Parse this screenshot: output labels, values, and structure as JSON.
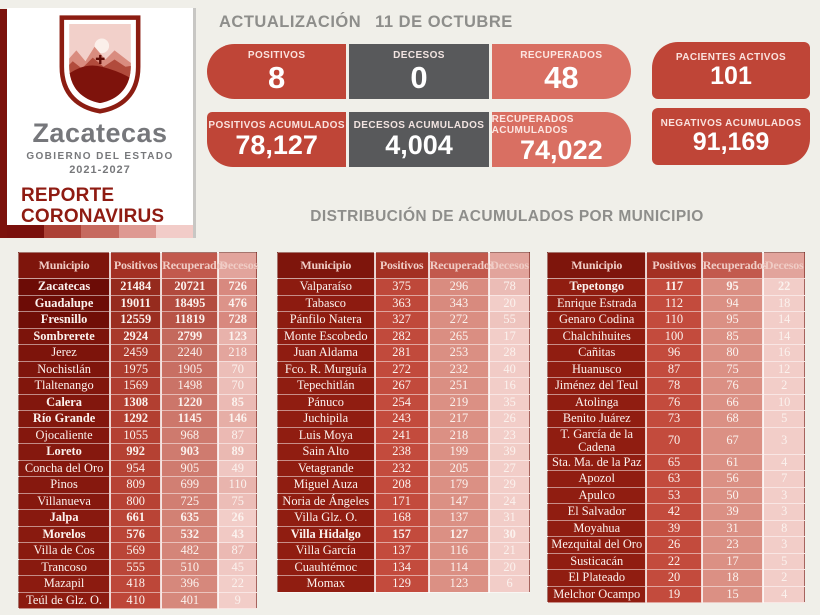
{
  "page": {
    "background": "#F0EFE9",
    "brand_red": "#8F1B12"
  },
  "sidebar": {
    "left_bar_color": "#7C120C",
    "logo": {
      "title": "Zacatecas",
      "subtitle": "GOBIERNO DEL ESTADO",
      "years": "2021-2027"
    },
    "report_title_line1": "REPORTE",
    "report_title_line2": "CORONAVIRUS",
    "accent_strip_colors": [
      "#7A100C",
      "#AC4136",
      "#C66A5F",
      "#DE9992",
      "#F2CCC8"
    ]
  },
  "header": {
    "update_label": "ACTUALIZACIÓN",
    "update_date": "11 DE OCTUBRE"
  },
  "stats": {
    "daily": [
      {
        "label": "POSITIVOS",
        "value": "8",
        "bg": "#BF4537"
      },
      {
        "label": "DECESOS",
        "value": "0",
        "bg": "#58595B"
      },
      {
        "label": "RECUPERADOS",
        "value": "48",
        "bg": "#D96F62"
      }
    ],
    "accumulated": [
      {
        "label": "POSITIVOS ACUMULADOS",
        "value": "78,127",
        "bg": "#BF4537"
      },
      {
        "label": "DECESOS ACUMULADOS",
        "value": "4,004",
        "bg": "#58595B"
      },
      {
        "label": "RECUPERADOS ACUMULADOS",
        "value": "74,022",
        "bg": "#D96F62"
      }
    ],
    "side": [
      {
        "label": "PACIENTES ACTIVOS",
        "value": "101",
        "bg": "#BF4537"
      },
      {
        "label": "NEGATIVOS ACUMULADOS",
        "value": "91,169",
        "bg": "#BF4537"
      }
    ]
  },
  "distribution": {
    "title": "DISTRIBUCIÓN DE ACUMULADOS POR MUNICIPIO",
    "columns": [
      "Municipio",
      "Positivos",
      "Recuperados",
      "Decesos"
    ],
    "header_colors": [
      "#7E150C",
      "#A33023",
      "#C2594D",
      "#E2A49C"
    ],
    "heat": {
      "municipio": {
        "base": "#901D11",
        "dark": "#6C0C06",
        "max": 21484
      },
      "positivos": {
        "base": "#C34B3D",
        "dark": "#952A1D",
        "max": 21484
      },
      "recuperados": {
        "base": "#DB9084",
        "dark": "#B24A3D",
        "max": 20721
      },
      "decesos": {
        "base": "#F2CDC8",
        "dark": "#D8897F",
        "max": 728
      }
    },
    "tables": [
      {
        "rows": [
          [
            "Zacatecas",
            21484,
            20721,
            726,
            1
          ],
          [
            "Guadalupe",
            19011,
            18495,
            476,
            1
          ],
          [
            "Fresnillo",
            12559,
            11819,
            728,
            1
          ],
          [
            "Sombrerete",
            2924,
            2799,
            123,
            1
          ],
          [
            "Jerez",
            2459,
            2240,
            218,
            0
          ],
          [
            "Nochistlán",
            1975,
            1905,
            70,
            0
          ],
          [
            "Tlaltenango",
            1569,
            1498,
            70,
            0
          ],
          [
            "Calera",
            1308,
            1220,
            85,
            1
          ],
          [
            "Río Grande",
            1292,
            1145,
            146,
            1
          ],
          [
            "Ojocaliente",
            1055,
            968,
            87,
            0
          ],
          [
            "Loreto",
            992,
            903,
            89,
            1
          ],
          [
            "Concha del Oro",
            954,
            905,
            49,
            0
          ],
          [
            "Pinos",
            809,
            699,
            110,
            0
          ],
          [
            "Villanueva",
            800,
            725,
            75,
            0
          ],
          [
            "Jalpa",
            661,
            635,
            26,
            1
          ],
          [
            "Morelos",
            576,
            532,
            43,
            1
          ],
          [
            "Villa de Cos",
            569,
            482,
            87,
            0
          ],
          [
            "Trancoso",
            555,
            510,
            45,
            0
          ],
          [
            "Mazapil",
            418,
            396,
            22,
            0
          ],
          [
            "Teúl de Glz. O.",
            410,
            401,
            9,
            0
          ]
        ]
      },
      {
        "rows": [
          [
            "Valparaíso",
            375,
            296,
            78,
            0
          ],
          [
            "Tabasco",
            363,
            343,
            20,
            0
          ],
          [
            "Pánfilo Natera",
            327,
            272,
            55,
            0
          ],
          [
            "Monte Escobedo",
            282,
            265,
            17,
            0
          ],
          [
            "Juan Aldama",
            281,
            253,
            28,
            0
          ],
          [
            "Fco. R. Murguía",
            272,
            232,
            40,
            0
          ],
          [
            "Tepechitlán",
            267,
            251,
            16,
            0
          ],
          [
            "Pánuco",
            254,
            219,
            35,
            0
          ],
          [
            "Juchipila",
            243,
            217,
            26,
            0
          ],
          [
            "Luis Moya",
            241,
            218,
            23,
            0
          ],
          [
            "Sain Alto",
            238,
            199,
            39,
            0
          ],
          [
            "Vetagrande",
            232,
            205,
            27,
            0
          ],
          [
            "Miguel Auza",
            208,
            179,
            29,
            0
          ],
          [
            "Noria de Ángeles",
            171,
            147,
            24,
            0
          ],
          [
            "Villa Glz. O.",
            168,
            137,
            31,
            0
          ],
          [
            "Villa Hidalgo",
            157,
            127,
            30,
            1
          ],
          [
            "Villa García",
            137,
            116,
            21,
            0
          ],
          [
            "Cuauhtémoc",
            134,
            114,
            20,
            0
          ],
          [
            "Momax",
            129,
            123,
            6,
            0
          ]
        ]
      },
      {
        "rows": [
          [
            "Tepetongo",
            117,
            95,
            22,
            1
          ],
          [
            "Enrique Estrada",
            112,
            94,
            18,
            0
          ],
          [
            "Genaro Codina",
            110,
            95,
            14,
            0
          ],
          [
            "Chalchihuites",
            100,
            85,
            14,
            0
          ],
          [
            "Cañitas",
            96,
            80,
            16,
            0
          ],
          [
            "Huanusco",
            87,
            75,
            12,
            0
          ],
          [
            "Jiménez del Teul",
            78,
            76,
            2,
            0
          ],
          [
            "Atolinga",
            76,
            66,
            10,
            0
          ],
          [
            "Benito Juárez",
            73,
            68,
            5,
            0
          ],
          [
            "T. García de la Cadena",
            70,
            67,
            3,
            0
          ],
          [
            "Sta. Ma. de la Paz",
            65,
            61,
            4,
            0
          ],
          [
            "Apozol",
            63,
            56,
            7,
            0
          ],
          [
            "Apulco",
            53,
            50,
            3,
            0
          ],
          [
            "El Salvador",
            42,
            39,
            3,
            0
          ],
          [
            "Moyahua",
            39,
            31,
            8,
            0
          ],
          [
            "Mezquital del Oro",
            26,
            23,
            3,
            0
          ],
          [
            "Susticacán",
            22,
            17,
            5,
            0
          ],
          [
            "El Plateado",
            20,
            18,
            2,
            0
          ],
          [
            "Melchor Ocampo",
            19,
            15,
            4,
            0
          ]
        ]
      }
    ]
  }
}
